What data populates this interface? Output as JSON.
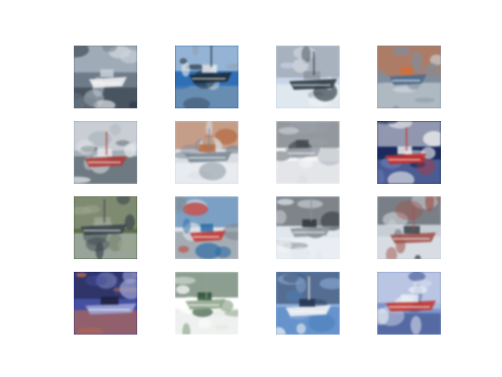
{
  "figure": {
    "rows": 4,
    "cols": 4,
    "images": [
      {
        "subject": "boat",
        "palette": [
          "#6e7c8a",
          "#c9d2da",
          "#f0f0f0",
          "#2f3b45"
        ]
      },
      {
        "subject": "boat",
        "palette": [
          "#2f6fb6",
          "#e9ecef",
          "#1f2a33",
          "#8fa1b0"
        ]
      },
      {
        "subject": "boat",
        "palette": [
          "#c9d6e8",
          "#8c949b",
          "#2e3b44",
          "#eef1f4"
        ]
      },
      {
        "subject": "boat",
        "palette": [
          "#7f8e9e",
          "#d46e3b",
          "#4d6b8b",
          "#cfd5da"
        ]
      },
      {
        "subject": "boat",
        "palette": [
          "#a4aeb6",
          "#e6e9ec",
          "#b13b36",
          "#4b555d"
        ]
      },
      {
        "subject": "boat",
        "palette": [
          "#d8dde3",
          "#b66a3f",
          "#7a8794",
          "#f3f5f7"
        ]
      },
      {
        "subject": "boat",
        "palette": [
          "#f4f5f7",
          "#444a52",
          "#9aa1a9",
          "#d7dbe0"
        ]
      },
      {
        "subject": "boat",
        "palette": [
          "#1b2b5e",
          "#f1f1f1",
          "#c9302a",
          "#6b7db8"
        ]
      },
      {
        "subject": "boat",
        "palette": [
          "#5e6e4c",
          "#9aa48f",
          "#3c464f",
          "#c0c8ce"
        ]
      },
      {
        "subject": "boat",
        "palette": [
          "#dde2e7",
          "#2b6aa6",
          "#c33b35",
          "#7f8a93"
        ]
      },
      {
        "subject": "boat",
        "palette": [
          "#dfe6ee",
          "#2d3337",
          "#8b939b",
          "#f2f4f6"
        ]
      },
      {
        "subject": "boat",
        "palette": [
          "#c6cdd4",
          "#3a3f45",
          "#a0524a",
          "#e4e8ec"
        ]
      },
      {
        "subject": "boat",
        "palette": [
          "#4550a0",
          "#1d1f3a",
          "#9aa3d6",
          "#c46a4a"
        ]
      },
      {
        "subject": "boat",
        "palette": [
          "#ffffff",
          "#2e4f35",
          "#8fa68c",
          "#e3e8e4"
        ]
      },
      {
        "subject": "boat",
        "palette": [
          "#8fb1de",
          "#253450",
          "#f2f2f2",
          "#4b7fbe"
        ]
      },
      {
        "subject": "boat",
        "palette": [
          "#7e95c9",
          "#e9edf5",
          "#c23a33",
          "#3b4e8a"
        ]
      }
    ]
  }
}
